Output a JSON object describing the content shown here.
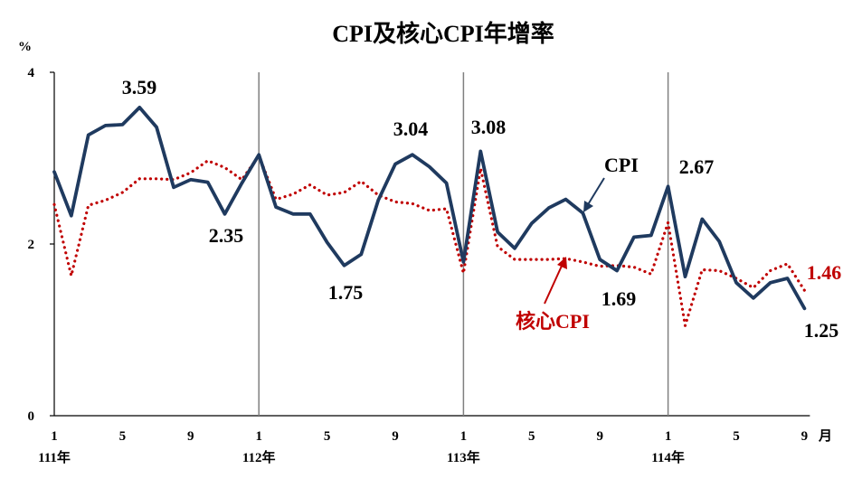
{
  "chart_data": {
    "type": "line",
    "title": "CPI及核心CPI年增率",
    "y_unit": "%",
    "x_unit": "月",
    "ylim": [
      0,
      4
    ],
    "y_ticks": [
      "0",
      "2",
      "4"
    ],
    "x_tick_labels": [
      "1",
      "5",
      "9",
      "1",
      "5",
      "9",
      "1",
      "5",
      "9",
      "1",
      "5",
      "9"
    ],
    "year_labels": [
      "111年",
      "112年",
      "113年",
      "114年"
    ],
    "x": [
      "111-01",
      "111-02",
      "111-03",
      "111-04",
      "111-05",
      "111-06",
      "111-07",
      "111-08",
      "111-09",
      "111-10",
      "111-11",
      "111-12",
      "112-01",
      "112-02",
      "112-03",
      "112-04",
      "112-05",
      "112-06",
      "112-07",
      "112-08",
      "112-09",
      "112-10",
      "112-11",
      "112-12",
      "113-01",
      "113-02",
      "113-03",
      "113-04",
      "113-05",
      "113-06",
      "113-07",
      "113-08",
      "113-09",
      "113-10",
      "113-11",
      "113-12",
      "114-01",
      "114-02",
      "114-03",
      "114-04",
      "114-05",
      "114-06",
      "114-07",
      "114-08",
      "114-09"
    ],
    "series": [
      {
        "name": "CPI",
        "color": "#1f3a5f",
        "style": "solid",
        "values": [
          2.84,
          2.33,
          3.27,
          3.38,
          3.39,
          3.59,
          3.36,
          2.66,
          2.75,
          2.72,
          2.35,
          2.71,
          3.04,
          2.43,
          2.35,
          2.35,
          2.02,
          1.75,
          1.88,
          2.51,
          2.93,
          3.04,
          2.9,
          2.71,
          1.79,
          3.08,
          2.14,
          1.95,
          2.24,
          2.42,
          2.52,
          2.36,
          1.82,
          1.69,
          2.08,
          2.1,
          2.67,
          1.62,
          2.29,
          2.03,
          1.55,
          1.37,
          1.55,
          1.6,
          1.25
        ]
      },
      {
        "name": "核心CPI",
        "color": "#c00000",
        "style": "dotted",
        "values": [
          2.46,
          1.63,
          2.45,
          2.51,
          2.6,
          2.76,
          2.76,
          2.75,
          2.83,
          2.97,
          2.89,
          2.75,
          3.03,
          2.52,
          2.58,
          2.69,
          2.57,
          2.6,
          2.73,
          2.57,
          2.49,
          2.47,
          2.39,
          2.41,
          1.66,
          2.88,
          1.97,
          1.82,
          1.82,
          1.82,
          1.83,
          1.79,
          1.74,
          1.75,
          1.73,
          1.65,
          2.25,
          1.05,
          1.7,
          1.69,
          1.6,
          1.49,
          1.69,
          1.77,
          1.46
        ]
      }
    ],
    "annotations": [
      "3.59",
      "2.35",
      "1.75",
      "3.04",
      "3.08",
      "1.69",
      "2.67",
      "1.25",
      "1.46"
    ],
    "grid": false,
    "legend": "inline labels"
  }
}
